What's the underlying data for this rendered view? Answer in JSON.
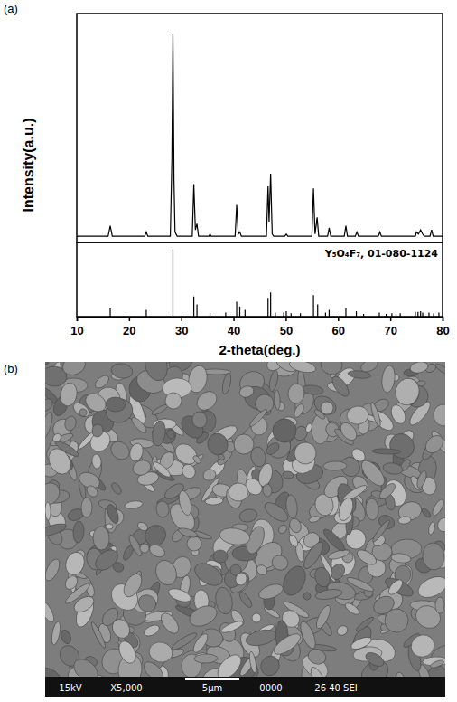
{
  "chart_data": [
    {
      "type": "line",
      "y_label": "Intensity(a.u.)",
      "color": "#000000",
      "tick_labels": false,
      "xlim": [
        10,
        80
      ],
      "ylim": [
        0,
        110
      ],
      "x": [
        10,
        16.0,
        16.4,
        16.8,
        23.0,
        23.3,
        23.6,
        27.9,
        28.2,
        28.4,
        28.6,
        28.8,
        29.2,
        32.1,
        32.4,
        32.7,
        33.0,
        33.3,
        35.3,
        35.5,
        35.7,
        40.3,
        40.6,
        40.9,
        41.2,
        41.5,
        46.3,
        46.6,
        46.8,
        47.1,
        47.4,
        47.7,
        49.8,
        50.1,
        50.4,
        55.0,
        55.3,
        55.6,
        56.0,
        56.3,
        58.0,
        58.3,
        58.6,
        61.2,
        61.5,
        61.8,
        63.3,
        63.6,
        63.9,
        67.7,
        68.0,
        68.3,
        74.8,
        75.0,
        75.4,
        75.8,
        76.2,
        76.5,
        77.6,
        77.9,
        78.2,
        80
      ],
      "values": [
        3,
        3,
        8,
        3,
        3,
        5,
        3,
        3,
        40,
        100,
        30,
        5,
        3,
        3,
        28,
        6,
        9,
        3,
        3,
        4,
        3,
        3,
        18,
        4,
        5,
        3,
        3,
        27,
        10,
        33,
        4,
        3,
        3,
        4,
        3,
        3,
        26,
        4,
        12,
        3,
        3,
        7,
        3,
        3,
        8,
        3,
        3,
        5,
        3,
        3,
        5,
        3,
        3,
        5,
        4,
        6,
        4,
        3,
        3,
        6,
        3,
        3
      ]
    },
    {
      "type": "stick",
      "annotation": "Y₅O₄F₇, 01-080-1124",
      "x_label": "2-theta(deg.)",
      "color": "#000000",
      "tick_labels": "x",
      "xlim": [
        10,
        80
      ],
      "xticks": [
        10,
        20,
        30,
        40,
        50,
        60,
        70,
        80
      ],
      "ylim": [
        0,
        110
      ],
      "x": [
        16.4,
        23.3,
        28.4,
        32.4,
        33.0,
        35.5,
        38.5,
        40.6,
        41.2,
        42.2,
        46.6,
        47.1,
        48.0,
        49.6,
        50.1,
        51.0,
        52.8,
        55.3,
        56.1,
        57.6,
        58.3,
        61.5,
        63.5,
        64.9,
        67.9,
        69.2,
        70.3,
        71.1,
        71.9,
        74.8,
        75.3,
        75.8,
        76.2,
        77.4,
        78.3,
        79.3
      ],
      "values": [
        12,
        10,
        100,
        30,
        18,
        5,
        6,
        22,
        15,
        10,
        28,
        36,
        6,
        6,
        8,
        5,
        5,
        32,
        18,
        6,
        10,
        12,
        8,
        4,
        6,
        4,
        5,
        4,
        5,
        7,
        7,
        8,
        6,
        6,
        5,
        6
      ]
    }
  ],
  "panel_labels": [
    "(a)",
    "(b)"
  ],
  "image": {
    "info_bar": [
      "15kV",
      "X5,000",
      "5μm",
      "0000",
      "26 40 SEI"
    ]
  }
}
